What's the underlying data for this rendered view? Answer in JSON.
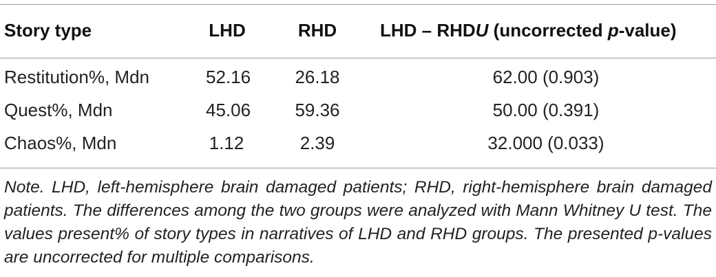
{
  "table": {
    "headers": {
      "story_type": "Story type",
      "lhd": "LHD",
      "rhd": "RHD",
      "diff_prefix": "LHD – RHD",
      "diff_u": "U",
      "diff_mid": " (uncorrected ",
      "diff_p": "p",
      "diff_suffix": "-value)"
    },
    "rows": [
      {
        "story_type": "Restitution%, Mdn",
        "lhd": "52.16",
        "rhd": "26.18",
        "diff": "62.00 (0.903)"
      },
      {
        "story_type": "Quest%, Mdn",
        "lhd": "45.06",
        "rhd": "59.36",
        "diff": "50.00 (0.391)"
      },
      {
        "story_type": "Chaos%, Mdn",
        "lhd": "1.12",
        "rhd": "2.39",
        "diff": "32.000 (0.033)"
      }
    ]
  },
  "note": "Note. LHD, left-hemisphere brain damaged patients; RHD, right-hemisphere brain damaged patients. The differences among the two groups were analyzed with Mann Whitney U test. The values present% of story types in narratives of LHD and RHD groups. The presented p-values are uncorrected for multiple comparisons."
}
